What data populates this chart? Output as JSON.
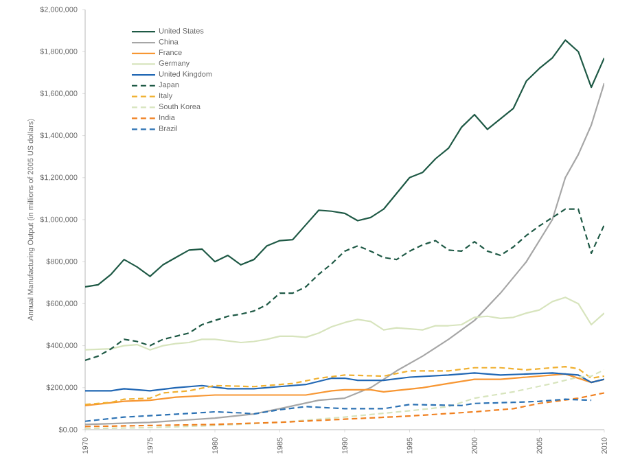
{
  "chart_data": {
    "type": "line",
    "ylabel": "Annual Manufacturing Output (in millions of 2005 US dollars)",
    "xlim": [
      1970,
      2010
    ],
    "xticks": [
      1970,
      1975,
      1980,
      1985,
      1990,
      1995,
      2000,
      2005,
      2010
    ],
    "ylim": [
      0,
      2000000
    ],
    "yticks": [
      {
        "value": 0,
        "label": "$0.00"
      },
      {
        "value": 200000,
        "label": "$200,000"
      },
      {
        "value": 400000,
        "label": "$400,000"
      },
      {
        "value": 600000,
        "label": "$600,000"
      },
      {
        "value": 800000,
        "label": "$800,000"
      },
      {
        "value": 1000000,
        "label": "$1,000,000"
      },
      {
        "value": 1200000,
        "label": "$1,200,000"
      },
      {
        "value": 1400000,
        "label": "$1,400,000"
      },
      {
        "value": 1600000,
        "label": "$1,600,000"
      },
      {
        "value": 1800000,
        "label": "$1,800,000"
      },
      {
        "value": 2000000,
        "label": "$2,000,000"
      }
    ],
    "legend": "top left",
    "grid": false,
    "marker": "none",
    "series": [
      {
        "name": "United States",
        "color": "#1e5945",
        "line_style": "solid",
        "x": [
          1970,
          1971,
          1972,
          1973,
          1974,
          1975,
          1976,
          1977,
          1978,
          1979,
          1980,
          1981,
          1982,
          1983,
          1984,
          1985,
          1986,
          1987,
          1988,
          1989,
          1990,
          1991,
          1992,
          1993,
          1994,
          1995,
          1996,
          1997,
          1998,
          1999,
          2000,
          2001,
          2002,
          2003,
          2004,
          2005,
          2006,
          2007,
          2008,
          2009,
          2010
        ],
        "values": [
          680000,
          690000,
          740000,
          810000,
          775000,
          730000,
          785000,
          820000,
          855000,
          860000,
          800000,
          830000,
          785000,
          810000,
          875000,
          900000,
          905000,
          975000,
          1045000,
          1040000,
          1030000,
          995000,
          1010000,
          1050000,
          1125000,
          1200000,
          1225000,
          1290000,
          1340000,
          1440000,
          1500000,
          1430000,
          1480000,
          1530000,
          1660000,
          1720000,
          1770000,
          1855000,
          1800000,
          1630000,
          1770000
        ]
      },
      {
        "name": "China",
        "color": "#a6a6a6",
        "line_style": "solid",
        "x": [
          1970,
          1975,
          1980,
          1983,
          1985,
          1988,
          1990,
          1992,
          1994,
          1996,
          1998,
          2000,
          2002,
          2004,
          2006,
          2007,
          2008,
          2009,
          2010
        ],
        "values": [
          25000,
          35000,
          55000,
          75000,
          100000,
          140000,
          150000,
          200000,
          280000,
          350000,
          430000,
          520000,
          650000,
          800000,
          1000000,
          1200000,
          1310000,
          1450000,
          1650000
        ]
      },
      {
        "name": "France",
        "color": "#f79632",
        "line_style": "solid",
        "x": [
          1970,
          1973,
          1975,
          1977,
          1980,
          1985,
          1987,
          1989,
          1990,
          1992,
          1993,
          1996,
          1998,
          2000,
          2002,
          2004,
          2007,
          2009,
          2010
        ],
        "values": [
          115000,
          135000,
          140000,
          155000,
          165000,
          165000,
          165000,
          185000,
          190000,
          190000,
          180000,
          200000,
          220000,
          240000,
          240000,
          250000,
          265000,
          225000,
          240000
        ]
      },
      {
        "name": "Germany",
        "color": "#d7e4bd",
        "line_style": "solid",
        "x": [
          1970,
          1972,
          1973,
          1974,
          1975,
          1976,
          1977,
          1978,
          1979,
          1980,
          1982,
          1983,
          1984,
          1985,
          1986,
          1987,
          1988,
          1989,
          1990,
          1991,
          1992,
          1993,
          1994,
          1995,
          1996,
          1997,
          1998,
          1999,
          2000,
          2001,
          2002,
          2003,
          2004,
          2005,
          2006,
          2007,
          2008,
          2009,
          2010
        ],
        "values": [
          380000,
          385000,
          400000,
          405000,
          380000,
          400000,
          410000,
          415000,
          430000,
          430000,
          415000,
          420000,
          430000,
          445000,
          445000,
          440000,
          460000,
          490000,
          510000,
          525000,
          515000,
          475000,
          485000,
          480000,
          475000,
          495000,
          495000,
          500000,
          535000,
          540000,
          530000,
          535000,
          555000,
          570000,
          610000,
          630000,
          600000,
          500000,
          555000
        ]
      },
      {
        "name": "United Kingdom",
        "color": "#2167b4",
        "line_style": "solid",
        "x": [
          1970,
          1972,
          1973,
          1975,
          1977,
          1979,
          1981,
          1983,
          1985,
          1987,
          1989,
          1990,
          1991,
          1993,
          1995,
          1998,
          2000,
          2002,
          2004,
          2006,
          2008,
          2009,
          2010
        ],
        "values": [
          185000,
          185000,
          195000,
          185000,
          200000,
          210000,
          195000,
          195000,
          205000,
          215000,
          245000,
          245000,
          235000,
          235000,
          250000,
          260000,
          270000,
          260000,
          265000,
          270000,
          260000,
          225000,
          240000
        ]
      },
      {
        "name": "Japan",
        "color": "#1e5945",
        "line_style": "dashed",
        "x": [
          1970,
          1971,
          1972,
          1973,
          1974,
          1975,
          1976,
          1977,
          1978,
          1979,
          1980,
          1981,
          1982,
          1983,
          1984,
          1985,
          1986,
          1987,
          1988,
          1989,
          1990,
          1991,
          1992,
          1993,
          1994,
          1995,
          1996,
          1997,
          1998,
          1999,
          2000,
          2001,
          2002,
          2003,
          2004,
          2005,
          2006,
          2007,
          2008,
          2009,
          2010
        ],
        "values": [
          330000,
          350000,
          385000,
          430000,
          420000,
          400000,
          430000,
          445000,
          460000,
          500000,
          520000,
          540000,
          550000,
          565000,
          595000,
          650000,
          650000,
          680000,
          740000,
          790000,
          850000,
          875000,
          850000,
          820000,
          810000,
          850000,
          880000,
          900000,
          855000,
          850000,
          895000,
          850000,
          830000,
          870000,
          925000,
          970000,
          1010000,
          1050000,
          1050000,
          840000,
          975000
        ]
      },
      {
        "name": "Italy",
        "color": "#f0b030",
        "line_style": "dashed",
        "x": [
          1970,
          1972,
          1973,
          1975,
          1976,
          1978,
          1980,
          1983,
          1986,
          1988,
          1990,
          1993,
          1995,
          1998,
          2000,
          2002,
          2004,
          2007,
          2008,
          2009,
          2010
        ],
        "values": [
          120000,
          130000,
          145000,
          150000,
          175000,
          185000,
          210000,
          205000,
          220000,
          245000,
          260000,
          255000,
          280000,
          280000,
          295000,
          295000,
          285000,
          300000,
          290000,
          245000,
          255000
        ]
      },
      {
        "name": "South Korea",
        "color": "#d7e4bd",
        "line_style": "dashed",
        "x": [
          1970,
          1975,
          1980,
          1985,
          1990,
          1995,
          1998,
          2000,
          2003,
          2006,
          2008,
          2009,
          2010
        ],
        "values": [
          5000,
          10000,
          20000,
          35000,
          60000,
          90000,
          110000,
          150000,
          180000,
          220000,
          250000,
          255000,
          285000
        ]
      },
      {
        "name": "India",
        "color": "#f08020",
        "line_style": "dashed",
        "x": [
          1970,
          1975,
          1980,
          1985,
          1990,
          1995,
          2000,
          2003,
          2005,
          2008,
          2010
        ],
        "values": [
          15000,
          20000,
          25000,
          35000,
          50000,
          65000,
          85000,
          100000,
          125000,
          150000,
          175000
        ]
      },
      {
        "name": "Brazil",
        "color": "#2c72b4",
        "line_style": "dashed",
        "x": [
          1970,
          1973,
          1976,
          1980,
          1982,
          1983,
          1985,
          1987,
          1990,
          1993,
          1995,
          1999,
          2000,
          2003,
          2005,
          2007,
          2009
        ],
        "values": [
          40000,
          60000,
          70000,
          85000,
          80000,
          75000,
          95000,
          110000,
          100000,
          100000,
          120000,
          115000,
          125000,
          130000,
          135000,
          145000,
          140000
        ]
      }
    ]
  }
}
